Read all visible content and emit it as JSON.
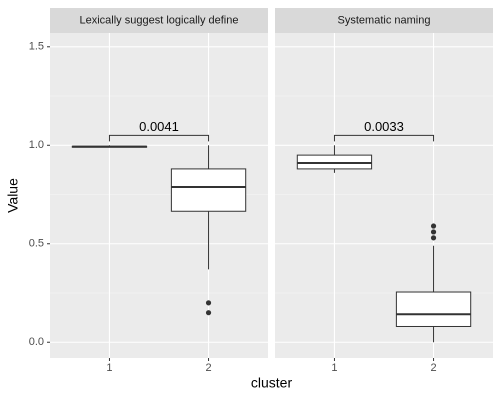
{
  "chart_data": [
    {
      "type": "boxplot",
      "title": "Lexically suggest logically define",
      "xlabel": "cluster",
      "ylabel": "Value",
      "categories": [
        "1",
        "2"
      ],
      "boxes": [
        {
          "min": 0.99,
          "q1": 0.99,
          "median": 0.993,
          "q3": 0.995,
          "max": 1.0,
          "outliers": []
        },
        {
          "min": 0.37,
          "q1": 0.665,
          "median": 0.788,
          "q3": 0.88,
          "max": 1.0,
          "outliers": [
            0.2,
            0.15
          ]
        }
      ],
      "annotation": {
        "label": "0.0041",
        "y": 1.05
      },
      "ylim": [
        -0.08,
        1.57
      ],
      "yticks": [
        {
          "value": 0,
          "label": "0.0"
        },
        {
          "value": 0.5,
          "label": "0.5"
        },
        {
          "value": 1,
          "label": "1.0"
        },
        {
          "value": 1.5,
          "label": "1.5"
        }
      ],
      "minor_yticks": [
        0.25,
        0.75,
        1.25
      ],
      "grid": true
    },
    {
      "type": "boxplot",
      "title": "Systematic naming",
      "categories": [
        "1",
        "2"
      ],
      "boxes": [
        {
          "min": 0.86,
          "q1": 0.88,
          "median": 0.91,
          "q3": 0.95,
          "max": 1.0,
          "outliers": []
        },
        {
          "min": 0.0,
          "q1": 0.08,
          "median": 0.142,
          "q3": 0.255,
          "max": 0.49,
          "outliers": [
            0.59,
            0.56,
            0.53
          ]
        }
      ],
      "annotation": {
        "label": "0.0033",
        "y": 1.05
      },
      "ylim": [
        -0.08,
        1.57
      ],
      "yticks": [
        0,
        0.5,
        1,
        1.5
      ],
      "minor_yticks": [
        0.25,
        0.75,
        1.25
      ],
      "grid": true
    }
  ]
}
